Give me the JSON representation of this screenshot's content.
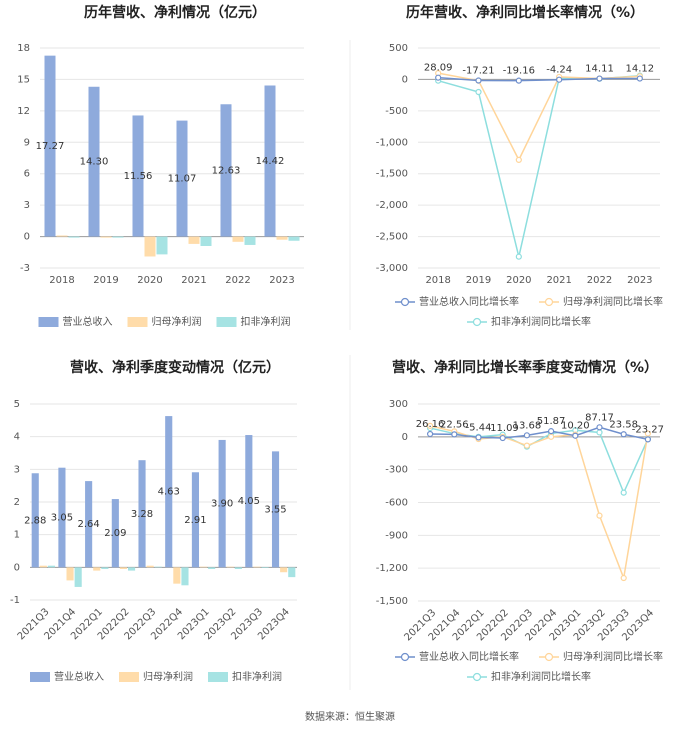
{
  "chart_data": [
    {
      "type": "bar",
      "title": "历年营收、净利情况（亿元）",
      "categories": [
        "2018",
        "2019",
        "2020",
        "2021",
        "2022",
        "2023"
      ],
      "series": [
        {
          "name": "营业总收入",
          "color": "#8eaadc",
          "values": [
            17.27,
            14.3,
            11.56,
            11.07,
            12.63,
            14.42
          ],
          "value_labels": [
            "17.27",
            "14.30",
            "11.56",
            "11.07",
            "12.63",
            "14.42"
          ]
        },
        {
          "name": "归母净利润",
          "color": "#ffdcaa",
          "values": [
            0.1,
            -0.1,
            -1.9,
            -0.7,
            -0.5,
            -0.3
          ]
        },
        {
          "name": "扣非净利润",
          "color": "#a6e3e3",
          "values": [
            -0.1,
            -0.1,
            -1.7,
            -0.9,
            -0.8,
            -0.4
          ]
        }
      ],
      "ylim": [
        -3,
        18
      ],
      "yticks": [
        -3,
        0,
        3,
        6,
        9,
        12,
        15,
        18
      ],
      "grid": true,
      "legend": "bottom"
    },
    {
      "type": "line",
      "title": "历年营收、净利同比增长率情况（%）",
      "categories": [
        "2018",
        "2019",
        "2020",
        "2021",
        "2022",
        "2023"
      ],
      "series": [
        {
          "name": "营业总收入同比增长率",
          "color": "#6f8fcc",
          "values": [
            28.09,
            -17.21,
            -19.16,
            -4.24,
            14.11,
            14.12
          ],
          "data_labels": true
        },
        {
          "name": "归母净利润同比增长率",
          "color": "#ffd59a",
          "values": [
            100,
            -20,
            -1280,
            40,
            15,
            50
          ]
        },
        {
          "name": "扣非净利润同比增长率",
          "color": "#8ddede",
          "values": [
            -20,
            -200,
            -2820,
            20,
            10,
            60
          ]
        }
      ],
      "ylim": [
        -3000,
        500
      ],
      "yticks": [
        {
          "value": -3000,
          "label": "-3,000"
        },
        {
          "value": -2500,
          "label": "-2,500"
        },
        {
          "value": -2000,
          "label": "-2,000"
        },
        {
          "value": -1500,
          "label": "-1,500"
        },
        {
          "value": -1000,
          "label": "-1,000"
        },
        -500,
        0,
        500
      ],
      "grid": true,
      "legend": "bottom"
    },
    {
      "type": "bar",
      "title": "营收、净利季度变动情况（亿元）",
      "categories": [
        "2021Q3",
        "2021Q4",
        "2022Q1",
        "2022Q2",
        "2022Q3",
        "2022Q4",
        "2023Q1",
        "2023Q2",
        "2023Q3",
        "2023Q4"
      ],
      "series": [
        {
          "name": "营业总收入",
          "color": "#8eaadc",
          "values": [
            2.88,
            3.05,
            2.64,
            2.09,
            3.28,
            4.63,
            2.91,
            3.9,
            4.05,
            3.55
          ],
          "value_labels": [
            "2.88",
            "3.05",
            "2.64",
            "2.09",
            "3.28",
            "4.63",
            "2.91",
            "3.90",
            "4.05",
            "3.55"
          ]
        },
        {
          "name": "归母净利润",
          "color": "#ffdcaa",
          "values": [
            0.05,
            -0.4,
            -0.1,
            -0.05,
            0.05,
            -0.5,
            0.02,
            0.02,
            0.02,
            -0.15
          ]
        },
        {
          "name": "扣非净利润",
          "color": "#a6e3e3",
          "values": [
            0.05,
            -0.6,
            -0.05,
            -0.1,
            0.02,
            -0.55,
            -0.05,
            -0.05,
            -0.02,
            -0.3
          ]
        }
      ],
      "ylim": [
        -1,
        5
      ],
      "yticks": [
        -1,
        0,
        1,
        2,
        3,
        4,
        5
      ],
      "grid": true,
      "legend": "bottom",
      "xtick_rotation": -45
    },
    {
      "type": "line",
      "title": "营收、净利同比增长率季度变动情况（%）",
      "categories": [
        "2021Q3",
        "2021Q4",
        "2022Q1",
        "2022Q2",
        "2022Q3",
        "2022Q4",
        "2023Q1",
        "2023Q2",
        "2023Q3",
        "2023Q4"
      ],
      "series": [
        {
          "name": "营业总收入同比增长率",
          "color": "#6f8fcc",
          "values": [
            26.16,
            22.56,
            -5.44,
            -11.09,
            13.68,
            51.87,
            10.2,
            87.17,
            23.58,
            -23.27
          ],
          "value_labels": [
            "26.16",
            "22.56",
            "-5.44",
            "-11.09",
            "13.68",
            "51.87",
            "10.20",
            "87.17",
            "23.58",
            "-23.27"
          ],
          "data_labels": true
        },
        {
          "name": "归母净利润同比增长率",
          "color": "#ffd59a",
          "values": [
            100,
            50,
            -20,
            0,
            -80,
            0,
            20,
            -720,
            -1290,
            30
          ]
        },
        {
          "name": "扣非净利润同比增长率",
          "color": "#8ddede",
          "values": [
            80,
            30,
            0,
            20,
            -90,
            30,
            60,
            40,
            -510,
            -20
          ]
        }
      ],
      "ylim": [
        -1500,
        300
      ],
      "yticks": [
        {
          "value": -1500,
          "label": "-1,500"
        },
        {
          "value": -1200,
          "label": "-1,200"
        },
        -900,
        -600,
        -300,
        0,
        300
      ],
      "grid": true,
      "legend": "bottom",
      "xtick_rotation": -45
    }
  ],
  "footer": "数据来源：恒生聚源"
}
